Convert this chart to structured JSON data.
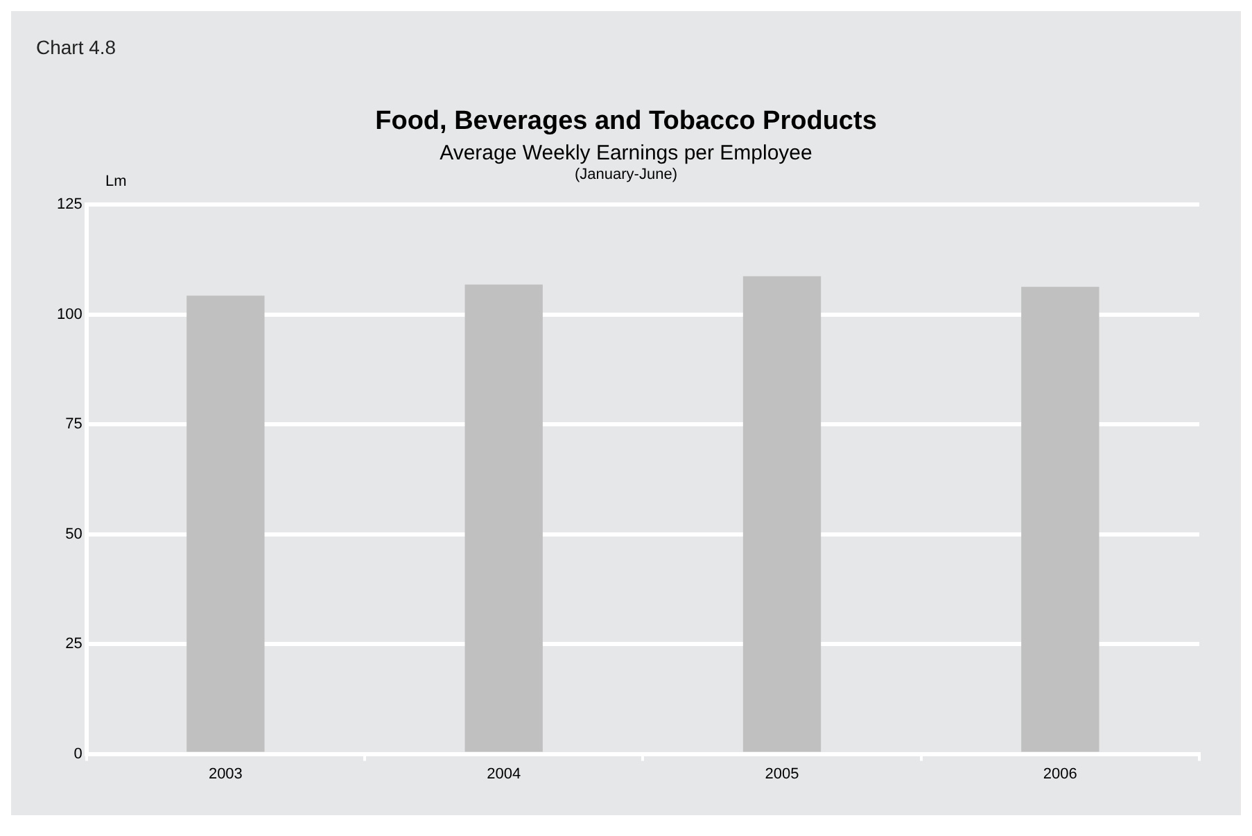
{
  "chart_data": {
    "type": "bar",
    "title": "Food, Beverages and Tobacco Products",
    "subtitle": "Average Weekly Earnings per Employee",
    "annotations": [
      "Chart 4.8",
      "(January-June)"
    ],
    "ylabel": "Lm",
    "categories": [
      "2003",
      "2004",
      "2005",
      "2006"
    ],
    "values": [
      104.3,
      106.8,
      108.7,
      106.3
    ],
    "color": "#c0c0c0",
    "ylim": [
      0,
      125
    ],
    "yticks": [
      0,
      25,
      50,
      75,
      100,
      125
    ],
    "grid": "y"
  }
}
